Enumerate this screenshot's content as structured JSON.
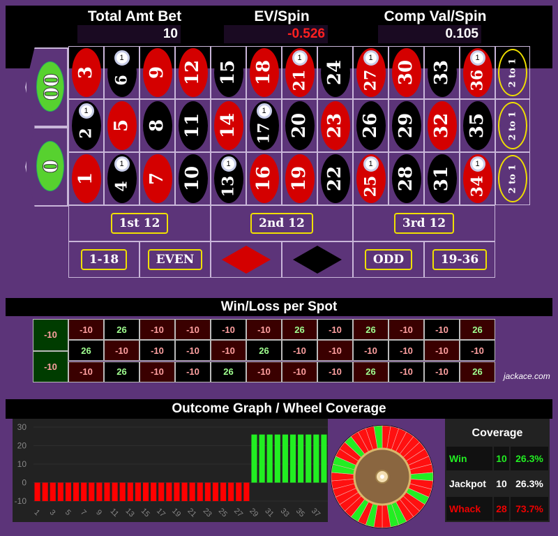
{
  "header": {
    "total_label": "Total Amt Bet",
    "total_value": "10",
    "ev_label": "EV/Spin",
    "ev_value": "-0.526",
    "comp_label": "Comp Val/Spin",
    "comp_value": "0.105"
  },
  "colors": {
    "red": "#d40000",
    "black": "#000000",
    "green": "#57d12f",
    "chip": "#ffffff",
    "negative": "#ff2020",
    "win": "#22ee22",
    "loss": "#ee0000"
  },
  "board": {
    "zeros": [
      "00",
      "0"
    ],
    "rows": [
      [
        {
          "n": "3",
          "c": "red"
        },
        {
          "n": "6",
          "c": "black",
          "chip": "1"
        },
        {
          "n": "9",
          "c": "red"
        },
        {
          "n": "12",
          "c": "red"
        },
        {
          "n": "15",
          "c": "black"
        },
        {
          "n": "18",
          "c": "red"
        },
        {
          "n": "21",
          "c": "red",
          "chip": "1"
        },
        {
          "n": "24",
          "c": "black"
        },
        {
          "n": "27",
          "c": "red",
          "chip": "1"
        },
        {
          "n": "30",
          "c": "red"
        },
        {
          "n": "33",
          "c": "black"
        },
        {
          "n": "36",
          "c": "red",
          "chip": "1"
        }
      ],
      [
        {
          "n": "2",
          "c": "black",
          "chip": "1"
        },
        {
          "n": "5",
          "c": "red"
        },
        {
          "n": "8",
          "c": "black"
        },
        {
          "n": "11",
          "c": "black"
        },
        {
          "n": "14",
          "c": "red"
        },
        {
          "n": "17",
          "c": "black",
          "chip": "1"
        },
        {
          "n": "20",
          "c": "black"
        },
        {
          "n": "23",
          "c": "red"
        },
        {
          "n": "26",
          "c": "black"
        },
        {
          "n": "29",
          "c": "black"
        },
        {
          "n": "32",
          "c": "red"
        },
        {
          "n": "35",
          "c": "black"
        }
      ],
      [
        {
          "n": "1",
          "c": "red"
        },
        {
          "n": "4",
          "c": "black",
          "chip": "1"
        },
        {
          "n": "7",
          "c": "red"
        },
        {
          "n": "10",
          "c": "black"
        },
        {
          "n": "13",
          "c": "black",
          "chip": "1"
        },
        {
          "n": "16",
          "c": "red"
        },
        {
          "n": "19",
          "c": "red"
        },
        {
          "n": "22",
          "c": "black"
        },
        {
          "n": "25",
          "c": "red",
          "chip": "1"
        },
        {
          "n": "28",
          "c": "black"
        },
        {
          "n": "31",
          "c": "black"
        },
        {
          "n": "34",
          "c": "red",
          "chip": "1"
        }
      ]
    ],
    "column_label": "2 to 1",
    "dozens": [
      "1st 12",
      "2nd 12",
      "3rd 12"
    ],
    "outside": [
      "1-18",
      "EVEN",
      "red",
      "black",
      "ODD",
      "19-36"
    ]
  },
  "winloss": {
    "title": "Win/Loss per Spot",
    "zeros": [
      "-10",
      "-10"
    ],
    "rows": [
      [
        "-10",
        "26",
        "-10",
        "-10",
        "-10",
        "-10",
        "26",
        "-10",
        "26",
        "-10",
        "-10",
        "26"
      ],
      [
        "26",
        "-10",
        "-10",
        "-10",
        "-10",
        "26",
        "-10",
        "-10",
        "-10",
        "-10",
        "-10",
        "-10"
      ],
      [
        "-10",
        "26",
        "-10",
        "-10",
        "26",
        "-10",
        "-10",
        "-10",
        "26",
        "-10",
        "-10",
        "26"
      ]
    ],
    "watermark": "jackace.com"
  },
  "outcome": {
    "title": "Outcome Graph / Wheel Coverage"
  },
  "chart_data": {
    "type": "bar",
    "x": [
      1,
      2,
      3,
      4,
      5,
      6,
      7,
      8,
      9,
      10,
      11,
      12,
      13,
      14,
      15,
      16,
      17,
      18,
      19,
      20,
      21,
      22,
      23,
      24,
      25,
      26,
      27,
      28,
      29,
      30,
      31,
      32,
      33,
      34,
      35,
      36,
      37,
      38
    ],
    "values": [
      -10,
      -10,
      -10,
      -10,
      -10,
      -10,
      -10,
      -10,
      -10,
      -10,
      -10,
      -10,
      -10,
      -10,
      -10,
      -10,
      -10,
      -10,
      -10,
      -10,
      -10,
      -10,
      -10,
      -10,
      -10,
      -10,
      -10,
      -10,
      26,
      26,
      26,
      26,
      26,
      26,
      26,
      26,
      26,
      26
    ],
    "xticks": [
      "1",
      "3",
      "5",
      "7",
      "9",
      "11",
      "13",
      "15",
      "17",
      "19",
      "21",
      "23",
      "25",
      "27",
      "29",
      "31",
      "33",
      "35",
      "37"
    ],
    "yticks": [
      "30",
      "20",
      "10",
      "0",
      "-10"
    ],
    "ylim": [
      -10,
      30
    ],
    "grid": true
  },
  "wheel": {
    "order": [
      "0",
      "28",
      "9",
      "26",
      "30",
      "11",
      "7",
      "20",
      "32",
      "17",
      "5",
      "22",
      "34",
      "15",
      "3",
      "24",
      "36",
      "13",
      "1",
      "00",
      "27",
      "10",
      "25",
      "29",
      "12",
      "8",
      "19",
      "31",
      "18",
      "6",
      "21",
      "33",
      "16",
      "4",
      "23",
      "35",
      "14",
      "2"
    ],
    "winning": [
      "6",
      "21",
      "27",
      "36",
      "2",
      "17",
      "4",
      "13",
      "25",
      "34"
    ]
  },
  "coverage": {
    "title": "Coverage",
    "rows": [
      {
        "label": "Win",
        "count": "10",
        "pct": "26.3%",
        "color": "#22ee22"
      },
      {
        "label": "Jackpot",
        "count": "10",
        "pct": "26.3%",
        "color": "#ffffff"
      },
      {
        "label": "Whack",
        "count": "28",
        "pct": "73.7%",
        "color": "#ee0000"
      }
    ]
  }
}
